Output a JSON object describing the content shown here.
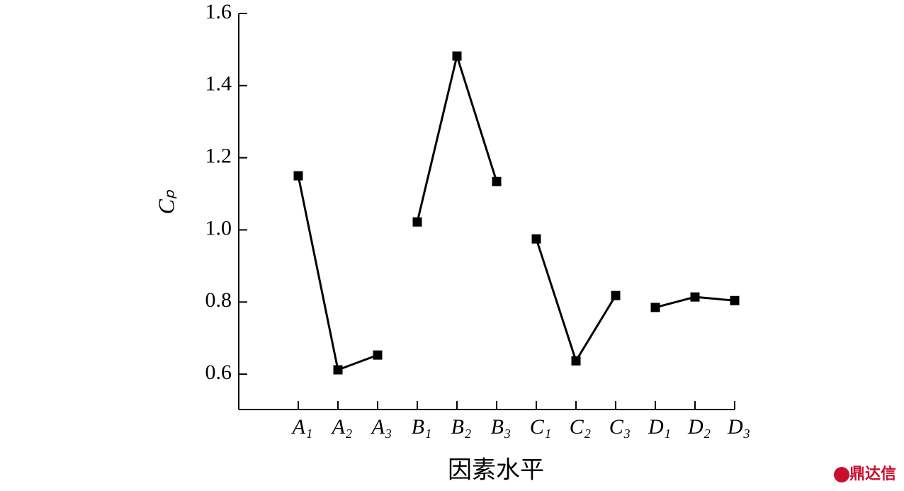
{
  "chart_data": {
    "type": "line",
    "categories": [
      "A₁",
      "A₂",
      "A₃",
      "B₁",
      "B₂",
      "B₃",
      "C₁",
      "C₂",
      "C₃",
      "D₁",
      "D₂",
      "D₃"
    ],
    "series": [
      {
        "color": "#000000",
        "values": [
          1.15,
          0.612,
          0.653,
          null,
          null,
          null,
          null,
          null,
          null,
          null,
          null,
          null
        ]
      },
      {
        "color": "#000000",
        "values": [
          null,
          null,
          null,
          1.022,
          1.482,
          1.134,
          null,
          null,
          null,
          null,
          null,
          null
        ]
      },
      {
        "color": "#000000",
        "values": [
          null,
          null,
          null,
          null,
          null,
          null,
          0.975,
          0.637,
          0.818,
          null,
          null,
          null
        ]
      },
      {
        "color": "#000000",
        "values": [
          null,
          null,
          null,
          null,
          null,
          null,
          null,
          null,
          null,
          0.785,
          0.814,
          0.804
        ]
      }
    ],
    "ylim": [
      0.502,
      1.6
    ],
    "yticks": [
      0.6,
      0.8,
      {
        "value": 1,
        "label": "1.0"
      },
      1.2,
      1.4,
      1.6
    ],
    "ylabel": "Cₚ",
    "xlabel": "因素水平",
    "watermark": "鼎达信"
  }
}
